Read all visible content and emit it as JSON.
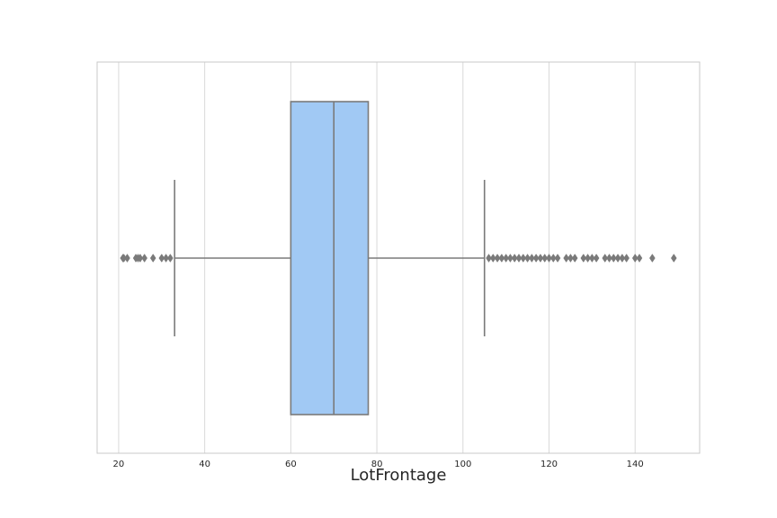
{
  "chart_data": {
    "type": "box",
    "orientation": "horizontal",
    "title": "",
    "xlabel": "LotFrontage",
    "ylabel": "",
    "xlim": [
      15,
      155
    ],
    "x_ticks": [
      20,
      40,
      60,
      80,
      100,
      120,
      140
    ],
    "grid": true,
    "series": [
      {
        "stats": {
          "whisker_low": 33,
          "q1": 60,
          "median": 70,
          "q3": 78,
          "whisker_high": 105
        },
        "outliers": [
          21,
          21.2,
          22,
          24,
          24.5,
          25,
          26,
          28,
          30,
          31,
          32,
          106,
          107,
          108,
          109,
          110,
          111,
          112,
          113,
          114,
          115,
          116,
          117,
          118,
          119,
          120,
          121,
          122,
          124,
          125,
          126,
          128,
          129,
          130,
          131,
          133,
          134,
          135,
          136,
          137,
          138,
          140,
          141,
          144,
          149
        ]
      }
    ],
    "colors": {
      "box_fill": "#a1c9f4",
      "line": "#7a7a7a",
      "grid": "#d9d9d9",
      "frame": "#c8c8c8"
    }
  }
}
